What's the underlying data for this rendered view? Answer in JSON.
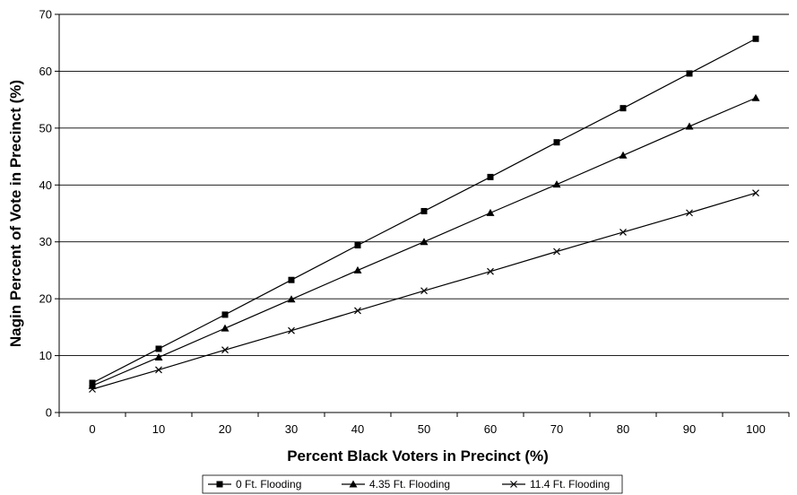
{
  "chart_data": {
    "type": "line",
    "title": "",
    "xlabel": "Percent Black Voters in Precinct (%)",
    "ylabel": "Nagin Percent of Vote in Precinct (%)",
    "x": [
      0,
      10,
      20,
      30,
      40,
      50,
      60,
      70,
      80,
      90,
      100
    ],
    "xlim": [
      -5,
      105
    ],
    "ylim": [
      0,
      70
    ],
    "x_ticks": [
      "0",
      "10",
      "20",
      "30",
      "40",
      "50",
      "60",
      "70",
      "80",
      "90",
      "100"
    ],
    "y_ticks": [
      "0",
      "10",
      "20",
      "30",
      "40",
      "50",
      "60",
      "70"
    ],
    "grid": "horizontal",
    "legend_position": "bottom",
    "series": [
      {
        "name": "0 Ft. Flooding",
        "marker": "square",
        "color": "#000000",
        "values": [
          5.2,
          11.2,
          17.2,
          23.3,
          29.4,
          35.4,
          41.4,
          47.5,
          53.5,
          59.6,
          65.7
        ]
      },
      {
        "name": "4.35 Ft. Flooding",
        "marker": "triangle",
        "color": "#000000",
        "values": [
          4.7,
          9.7,
          14.8,
          19.9,
          25.0,
          30.0,
          35.1,
          40.1,
          45.2,
          50.3,
          55.3
        ]
      },
      {
        "name": "11.4 Ft. Flooding",
        "marker": "x",
        "color": "#000000",
        "values": [
          4.1,
          7.5,
          11.0,
          14.4,
          17.9,
          21.4,
          24.8,
          28.3,
          31.7,
          35.1,
          38.6
        ]
      }
    ]
  }
}
